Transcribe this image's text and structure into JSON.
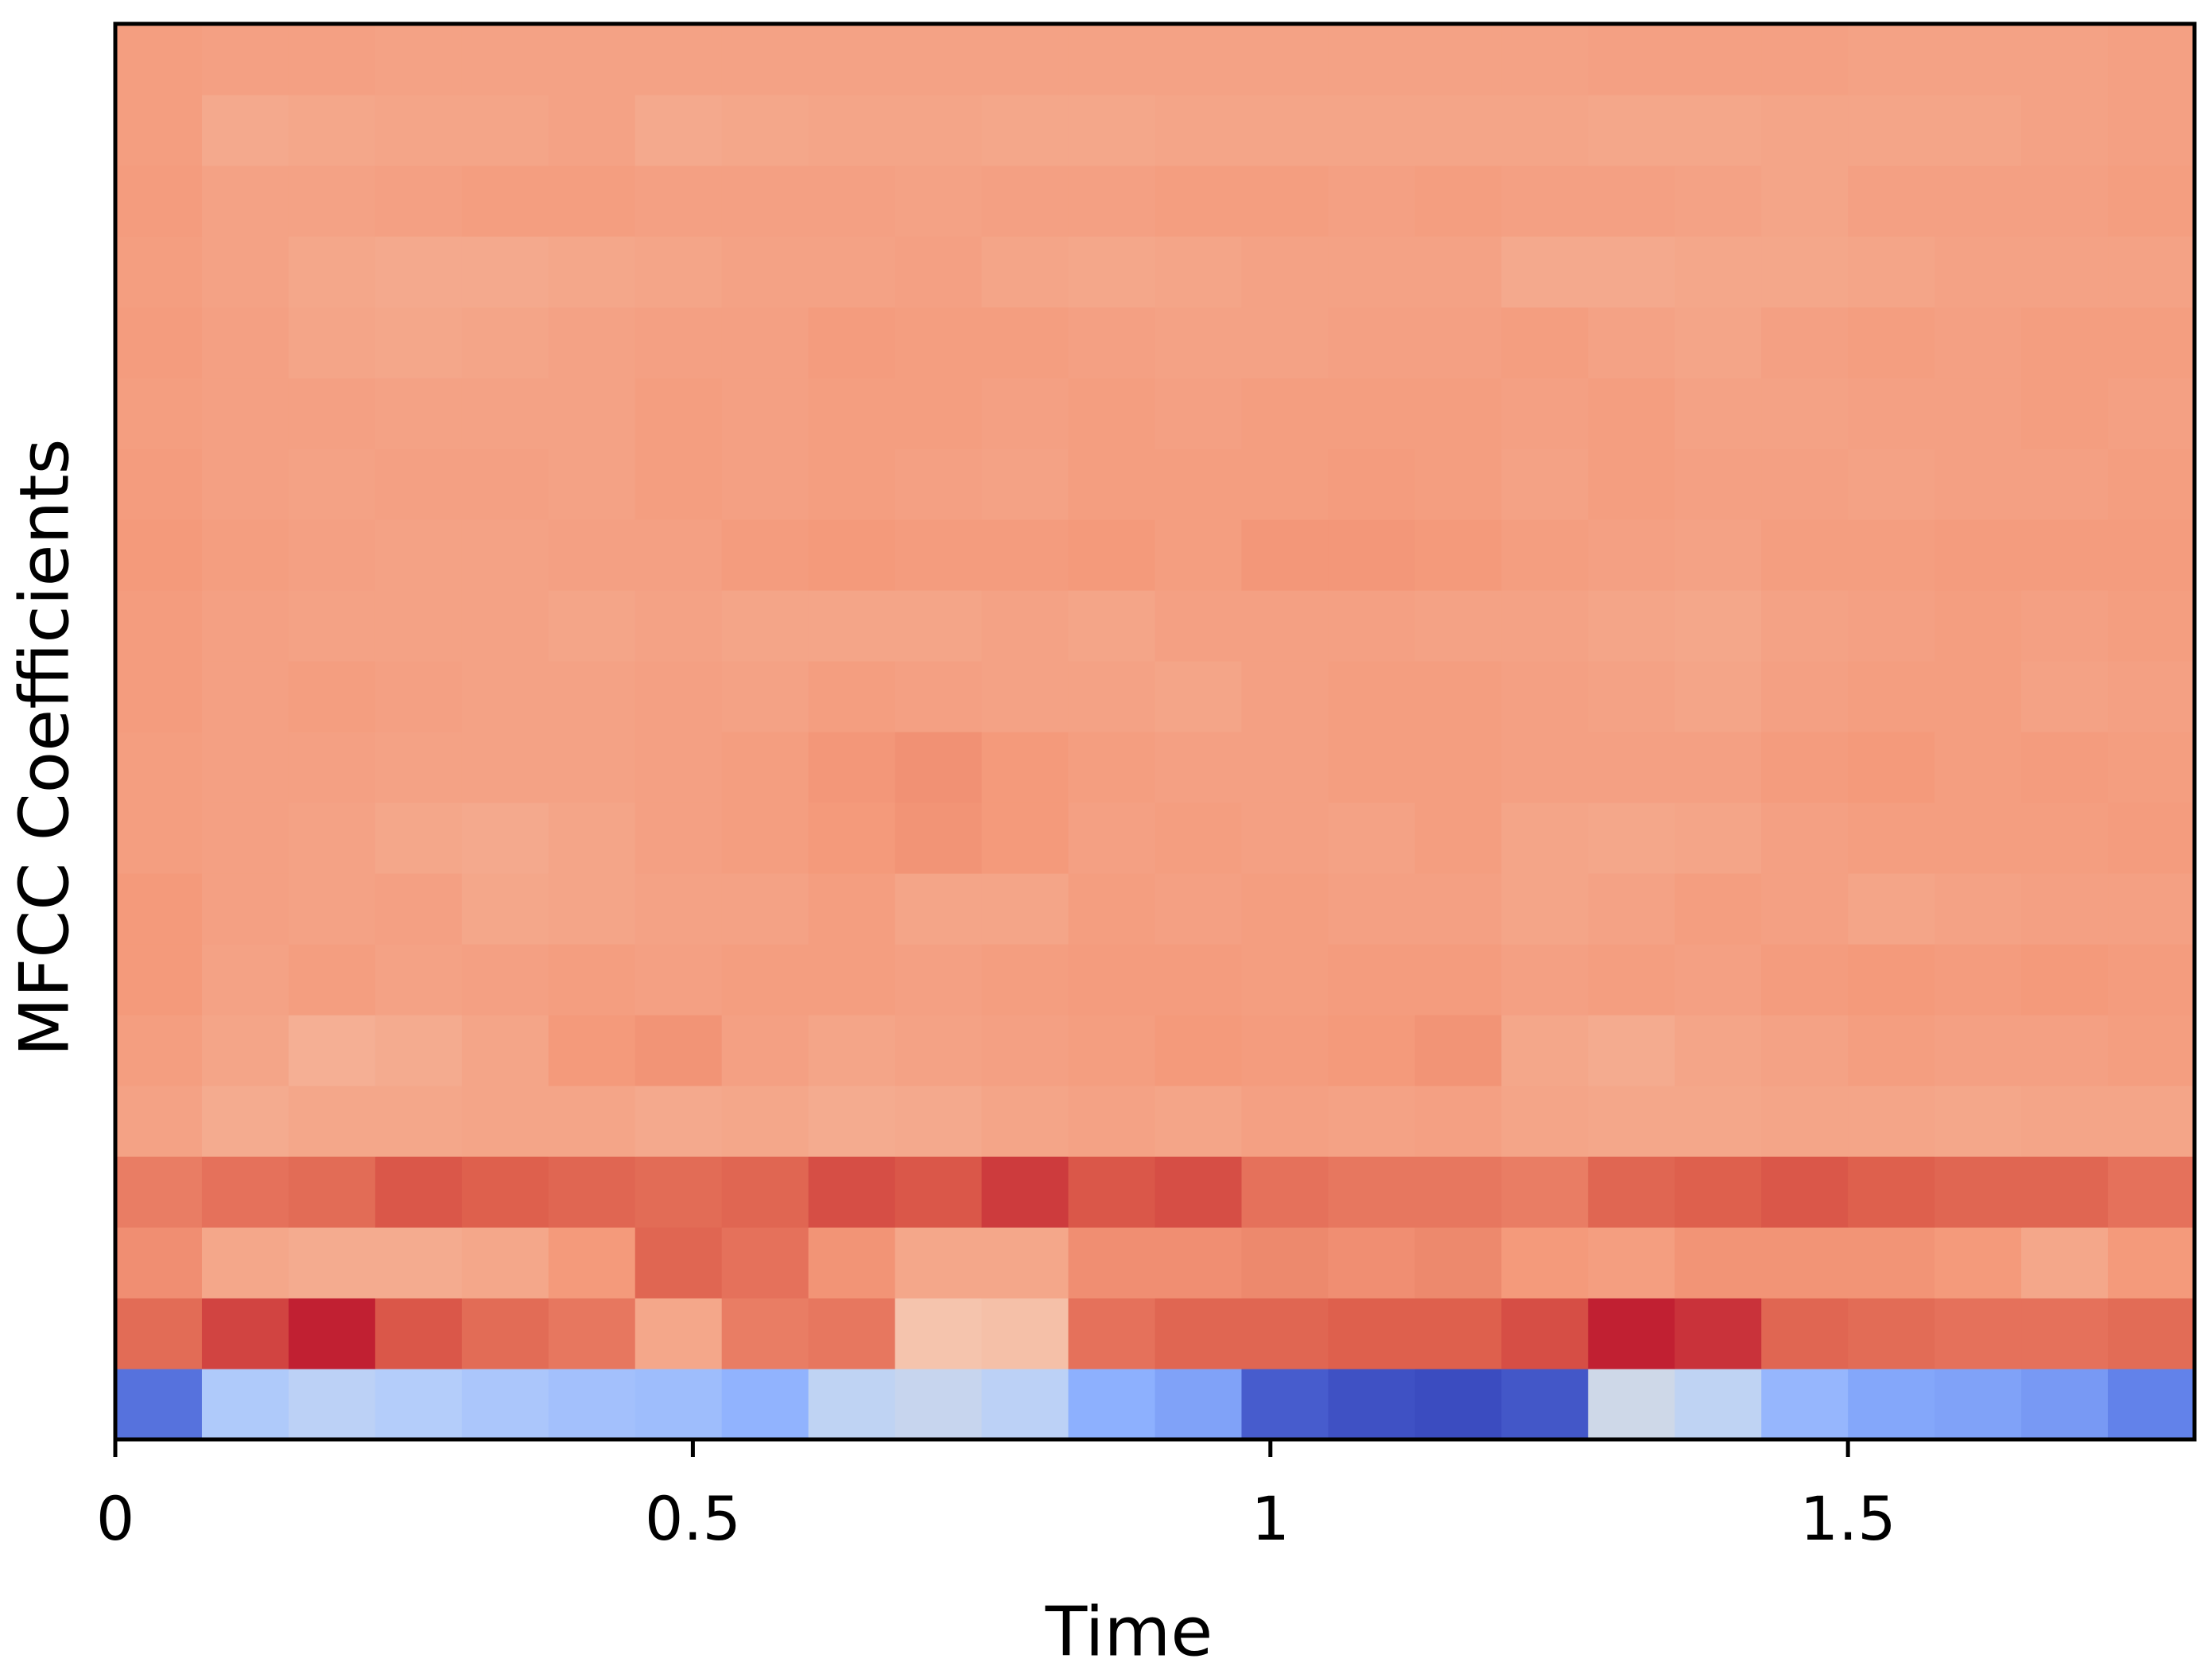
{
  "chart_data": {
    "type": "heatmap",
    "xlabel": "Time",
    "ylabel": "MFCC Coefficients",
    "colormap": "coolwarm",
    "origin": "lower",
    "xlim": [
      0,
      1.8
    ],
    "xticks": [
      0,
      0.5,
      1,
      1.5
    ],
    "x": [
      0,
      0.075,
      0.15,
      0.225,
      0.3,
      0.375,
      0.45,
      0.525,
      0.6,
      0.675,
      0.75,
      0.825,
      0.9,
      0.975,
      1.05,
      1.125,
      1.2,
      1.275,
      1.35,
      1.425,
      1.5,
      1.575,
      1.65,
      1.725
    ],
    "z": [
      [
        -330,
        -120,
        -90,
        -110,
        -130,
        -150,
        -160,
        -190,
        -80,
        -60,
        -90,
        -200,
        -230,
        -370,
        -390,
        -400,
        -380,
        -40,
        -80,
        -180,
        -220,
        -230,
        -250,
        -300
      ],
      [
        280,
        330,
        370,
        310,
        280,
        260,
        170,
        250,
        260,
        100,
        110,
        270,
        290,
        290,
        300,
        300,
        320,
        370,
        350,
        290,
        280,
        270,
        270,
        280
      ],
      [
        220,
        170,
        160,
        160,
        170,
        200,
        290,
        270,
        210,
        170,
        170,
        220,
        220,
        230,
        220,
        230,
        200,
        190,
        210,
        210,
        210,
        200,
        170,
        200
      ],
      [
        250,
        270,
        280,
        310,
        300,
        290,
        280,
        290,
        320,
        310,
        340,
        310,
        320,
        270,
        260,
        260,
        250,
        290,
        300,
        310,
        300,
        290,
        290,
        270
      ],
      [
        180,
        160,
        170,
        170,
        175,
        175,
        165,
        170,
        160,
        165,
        175,
        180,
        175,
        185,
        180,
        185,
        175,
        170,
        170,
        175,
        175,
        170,
        175,
        175
      ],
      [
        190,
        175,
        150,
        160,
        175,
        200,
        210,
        185,
        175,
        180,
        185,
        190,
        200,
        195,
        200,
        210,
        170,
        160,
        175,
        180,
        190,
        185,
        185,
        190
      ],
      [
        200,
        180,
        190,
        180,
        185,
        190,
        185,
        190,
        190,
        185,
        190,
        195,
        195,
        190,
        195,
        195,
        185,
        190,
        185,
        195,
        200,
        195,
        200,
        195
      ],
      [
        200,
        185,
        180,
        185,
        170,
        175,
        180,
        180,
        190,
        175,
        175,
        190,
        185,
        190,
        185,
        185,
        175,
        180,
        190,
        185,
        175,
        180,
        185,
        185
      ],
      [
        190,
        185,
        180,
        170,
        165,
        175,
        185,
        190,
        200,
        210,
        200,
        185,
        190,
        185,
        180,
        190,
        175,
        170,
        175,
        185,
        190,
        190,
        190,
        195
      ],
      [
        190,
        185,
        185,
        180,
        180,
        180,
        185,
        190,
        205,
        215,
        200,
        190,
        185,
        185,
        190,
        190,
        185,
        185,
        185,
        195,
        200,
        190,
        195,
        190
      ],
      [
        195,
        185,
        190,
        185,
        180,
        180,
        185,
        180,
        190,
        185,
        180,
        180,
        175,
        185,
        190,
        190,
        185,
        180,
        175,
        185,
        190,
        190,
        180,
        185
      ],
      [
        195,
        185,
        180,
        180,
        180,
        175,
        180,
        175,
        175,
        175,
        180,
        175,
        185,
        185,
        185,
        180,
        180,
        175,
        170,
        180,
        185,
        190,
        185,
        190
      ],
      [
        200,
        190,
        185,
        180,
        180,
        185,
        185,
        195,
        200,
        195,
        195,
        200,
        190,
        205,
        205,
        200,
        190,
        185,
        180,
        190,
        190,
        195,
        195,
        195
      ],
      [
        195,
        185,
        180,
        185,
        185,
        180,
        190,
        185,
        190,
        185,
        180,
        190,
        190,
        190,
        195,
        190,
        180,
        190,
        185,
        185,
        180,
        185,
        185,
        190
      ],
      [
        190,
        185,
        185,
        180,
        180,
        180,
        190,
        185,
        190,
        190,
        185,
        190,
        185,
        190,
        190,
        190,
        185,
        190,
        180,
        180,
        185,
        185,
        190,
        185
      ],
      [
        195,
        185,
        175,
        170,
        175,
        180,
        185,
        185,
        195,
        190,
        190,
        185,
        180,
        180,
        185,
        185,
        190,
        180,
        175,
        185,
        190,
        185,
        190,
        190
      ],
      [
        190,
        180,
        170,
        165,
        165,
        170,
        175,
        180,
        180,
        185,
        175,
        170,
        175,
        180,
        180,
        180,
        165,
        165,
        170,
        170,
        175,
        180,
        180,
        180
      ],
      [
        195,
        180,
        180,
        185,
        190,
        190,
        185,
        185,
        185,
        180,
        185,
        185,
        190,
        190,
        185,
        190,
        185,
        185,
        180,
        175,
        185,
        185,
        185,
        190
      ],
      [
        190,
        165,
        170,
        175,
        175,
        180,
        165,
        170,
        175,
        175,
        170,
        170,
        175,
        175,
        175,
        175,
        175,
        170,
        170,
        175,
        175,
        175,
        180,
        185
      ],
      [
        190,
        185,
        185,
        180,
        180,
        180,
        180,
        180,
        180,
        180,
        180,
        180,
        180,
        180,
        180,
        180,
        180,
        185,
        185,
        185,
        180,
        180,
        180,
        185
      ]
    ]
  }
}
